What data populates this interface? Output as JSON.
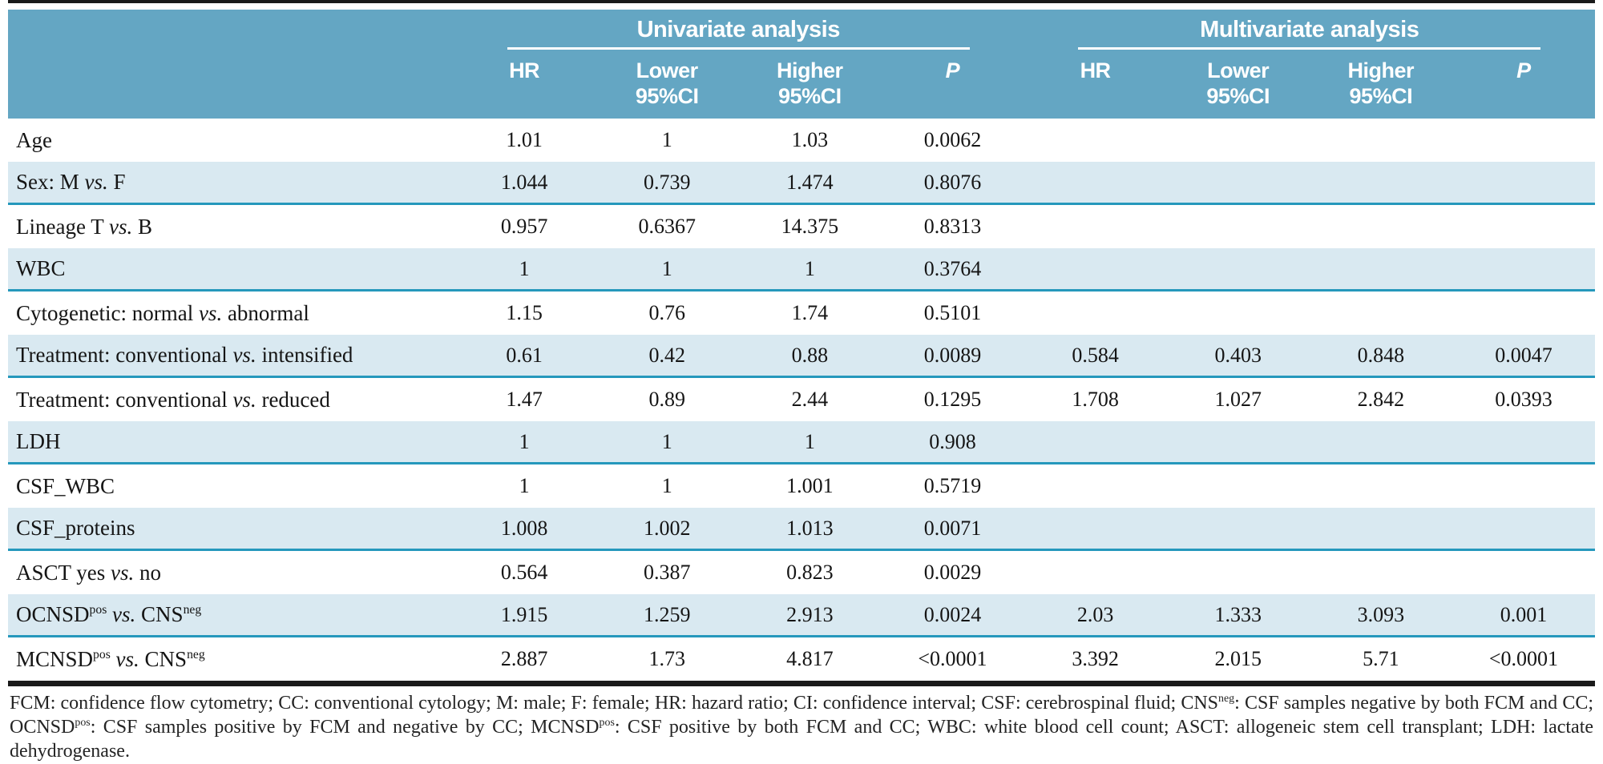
{
  "colors": {
    "header_bg": "#64a6c3",
    "row_shade": "#d9e9f1",
    "divider": "#2598bc",
    "rule": "#1a1a1a"
  },
  "table": {
    "group_headers": [
      {
        "label": "Univariate analysis"
      },
      {
        "label": "Multivariate analysis"
      }
    ],
    "col_headers": [
      {
        "line1": "HR",
        "line2": ""
      },
      {
        "line1": "Lower",
        "line2": "95%CI"
      },
      {
        "line1": "Higher",
        "line2": "95%CI"
      },
      {
        "line1": "P",
        "line2": "",
        "italic": true
      },
      {
        "line1": "HR",
        "line2": ""
      },
      {
        "line1": "Lower",
        "line2": "95%CI"
      },
      {
        "line1": "Higher",
        "line2": "95%CI"
      },
      {
        "line1": "P",
        "line2": "",
        "italic": true
      }
    ],
    "rows": [
      {
        "label": [
          {
            "t": "Age"
          }
        ],
        "uni": [
          "1.01",
          "1",
          "1.03",
          "0.0062"
        ],
        "multi": [
          "",
          "",
          "",
          ""
        ],
        "shaded": false,
        "divider": false
      },
      {
        "label": [
          {
            "t": "Sex: M "
          },
          {
            "t": "vs.",
            "i": true
          },
          {
            "t": " F"
          }
        ],
        "uni": [
          "1.044",
          "0.739",
          "1.474",
          "0.8076"
        ],
        "multi": [
          "",
          "",
          "",
          ""
        ],
        "shaded": true,
        "divider": true
      },
      {
        "label": [
          {
            "t": "Lineage T "
          },
          {
            "t": "vs.",
            "i": true
          },
          {
            "t": " B"
          }
        ],
        "uni": [
          "0.957",
          "0.6367",
          "14.375",
          "0.8313"
        ],
        "multi": [
          "",
          "",
          "",
          ""
        ],
        "shaded": false,
        "divider": false
      },
      {
        "label": [
          {
            "t": "WBC"
          }
        ],
        "uni": [
          "1",
          "1",
          "1",
          "0.3764"
        ],
        "multi": [
          "",
          "",
          "",
          ""
        ],
        "shaded": true,
        "divider": true
      },
      {
        "label": [
          {
            "t": "Cytogenetic: normal "
          },
          {
            "t": "vs.",
            "i": true
          },
          {
            "t": " abnormal"
          }
        ],
        "uni": [
          "1.15",
          "0.76",
          "1.74",
          "0.5101"
        ],
        "multi": [
          "",
          "",
          "",
          ""
        ],
        "shaded": false,
        "divider": false
      },
      {
        "label": [
          {
            "t": "Treatment: conventional "
          },
          {
            "t": "vs.",
            "i": true
          },
          {
            "t": " intensified"
          }
        ],
        "uni": [
          "0.61",
          "0.42",
          "0.88",
          "0.0089"
        ],
        "multi": [
          "0.584",
          "0.403",
          "0.848",
          "0.0047"
        ],
        "shaded": true,
        "divider": true
      },
      {
        "label": [
          {
            "t": "Treatment: conventional "
          },
          {
            "t": "vs.",
            "i": true
          },
          {
            "t": " reduced"
          }
        ],
        "uni": [
          "1.47",
          "0.89",
          "2.44",
          "0.1295"
        ],
        "multi": [
          "1.708",
          "1.027",
          "2.842",
          "0.0393"
        ],
        "shaded": false,
        "divider": false
      },
      {
        "label": [
          {
            "t": "LDH"
          }
        ],
        "uni": [
          "1",
          "1",
          "1",
          "0.908"
        ],
        "multi": [
          "",
          "",
          "",
          ""
        ],
        "shaded": true,
        "divider": true
      },
      {
        "label": [
          {
            "t": "CSF_WBC"
          }
        ],
        "uni": [
          "1",
          "1",
          "1.001",
          "0.5719"
        ],
        "multi": [
          "",
          "",
          "",
          ""
        ],
        "shaded": false,
        "divider": false
      },
      {
        "label": [
          {
            "t": "CSF_proteins"
          }
        ],
        "uni": [
          "1.008",
          "1.002",
          "1.013",
          "0.0071"
        ],
        "multi": [
          "",
          "",
          "",
          ""
        ],
        "shaded": true,
        "divider": true
      },
      {
        "label": [
          {
            "t": "ASCT yes "
          },
          {
            "t": "vs.",
            "i": true
          },
          {
            "t": " no"
          }
        ],
        "uni": [
          "0.564",
          "0.387",
          "0.823",
          "0.0029"
        ],
        "multi": [
          "",
          "",
          "",
          ""
        ],
        "shaded": false,
        "divider": false
      },
      {
        "label": [
          {
            "t": "OCNSD"
          },
          {
            "t": "pos",
            "sup": true
          },
          {
            "t": " "
          },
          {
            "t": "vs.",
            "i": true
          },
          {
            "t": " CNS"
          },
          {
            "t": "neg",
            "sup": true
          }
        ],
        "uni": [
          "1.915",
          "1.259",
          "2.913",
          "0.0024"
        ],
        "multi": [
          "2.03",
          "1.333",
          "3.093",
          "0.001"
        ],
        "shaded": true,
        "divider": true
      },
      {
        "label": [
          {
            "t": "MCNSD"
          },
          {
            "t": "pos",
            "sup": true
          },
          {
            "t": " "
          },
          {
            "t": "vs.",
            "i": true
          },
          {
            "t": " CNS"
          },
          {
            "t": "neg",
            "sup": true
          }
        ],
        "uni": [
          "2.887",
          "1.73",
          "4.817",
          "<0.0001"
        ],
        "multi": [
          "3.392",
          "2.015",
          "5.71",
          "<0.0001"
        ],
        "shaded": false,
        "divider": false
      }
    ]
  },
  "footnote": {
    "segments": [
      {
        "t": "FCM: confidence flow cytometry; CC: conventional cytology; M: male; F: female; HR: hazard ratio; CI: confidence interval; CSF: cerebrospinal fluid; CNS"
      },
      {
        "t": "neg",
        "sup": true
      },
      {
        "t": ": CSF samples negative by both FCM and CC; OCNSD"
      },
      {
        "t": "pos",
        "sup": true
      },
      {
        "t": ": CSF samples positive by FCM and negative by CC; MCNSD"
      },
      {
        "t": "pos",
        "sup": true
      },
      {
        "t": ": CSF positive by both FCM and CC; WBC: white blood cell count; ASCT: allogeneic stem cell transplant; LDH: lactate dehydrogenase."
      }
    ]
  }
}
